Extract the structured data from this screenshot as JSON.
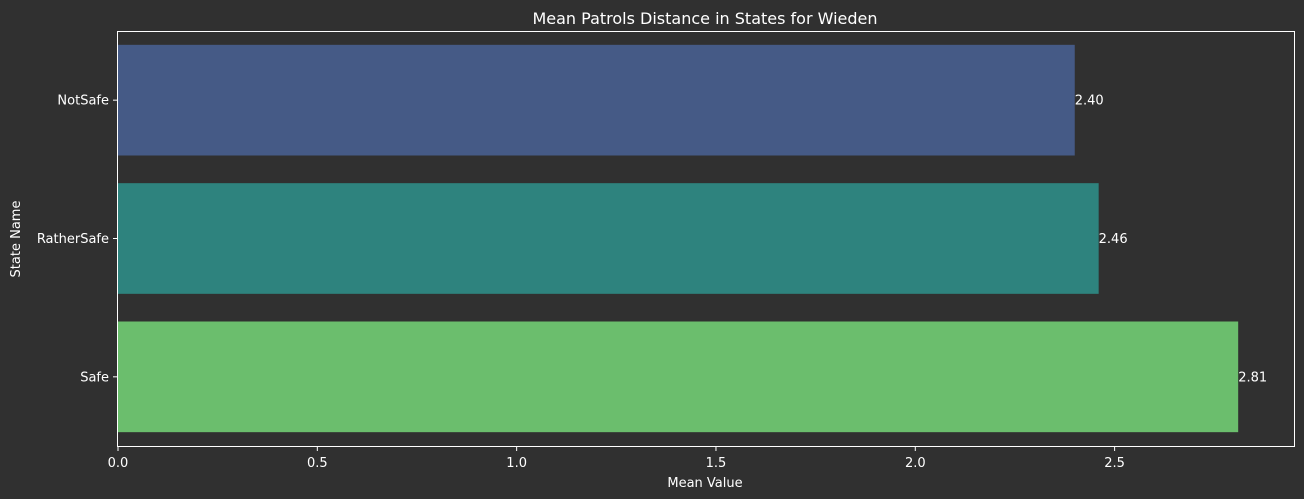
{
  "chart_data": {
    "type": "bar",
    "orientation": "horizontal",
    "title": "Mean Patrols Distance in States for Wieden",
    "xlabel": "Mean Value",
    "ylabel": "State Name",
    "categories": [
      "NotSafe",
      "RatherSafe",
      "Safe"
    ],
    "values": [
      2.4,
      2.46,
      2.81
    ],
    "value_labels": [
      "2.40",
      "2.46",
      "2.81"
    ],
    "colors": [
      "#455a86",
      "#2e837e",
      "#6bbe6d"
    ],
    "xlim": [
      0,
      2.95
    ],
    "xticks": [
      0.0,
      0.5,
      1.0,
      1.5,
      2.0,
      2.5
    ],
    "xtick_labels": [
      "0.0",
      "0.5",
      "1.0",
      "1.5",
      "2.0",
      "2.5"
    ],
    "grid": false,
    "background": "#303030",
    "axis_color": "#ffffff",
    "text_color": "#ffffff"
  }
}
